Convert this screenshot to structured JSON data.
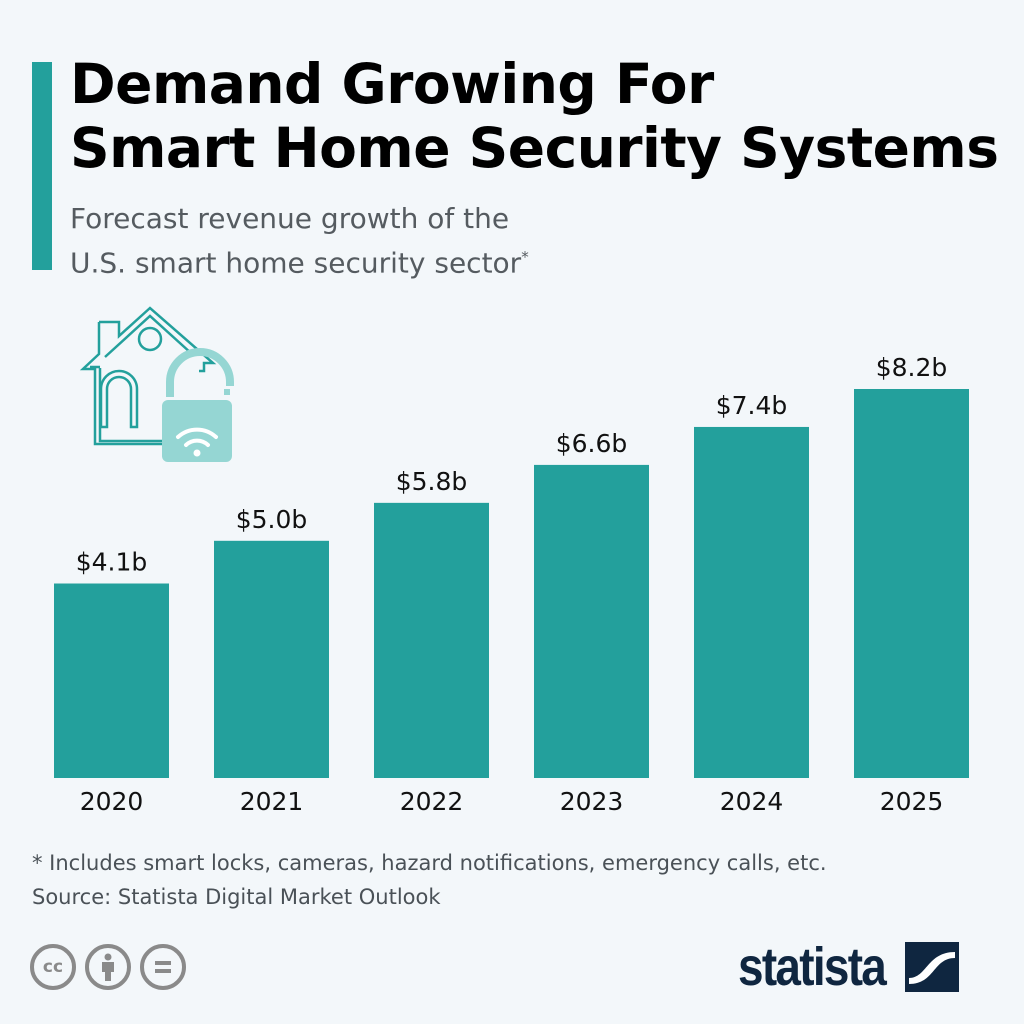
{
  "header": {
    "title_line1": "Demand Growing For",
    "title_line2": "Smart Home Security Systems",
    "subtitle_line1": "Forecast revenue growth of the",
    "subtitle_line2": "U.S. smart home security sector",
    "subtitle_mark": "*"
  },
  "colors": {
    "accent": "#23a09c",
    "bar": "#23a09c",
    "icon": "#23a09c",
    "lock": "#95d6d3",
    "logo": "#0f2640"
  },
  "chart_data": {
    "type": "bar",
    "title": "Demand Growing For Smart Home Security Systems",
    "subtitle": "Forecast revenue growth of the U.S. smart home security sector*",
    "categories": [
      "2020",
      "2021",
      "2022",
      "2023",
      "2024",
      "2025"
    ],
    "values": [
      4.1,
      5.0,
      5.8,
      6.6,
      7.4,
      8.2
    ],
    "value_labels": [
      "$4.1b",
      "$5.0b",
      "$5.8b",
      "$6.6b",
      "$7.4b",
      "$8.2b"
    ],
    "unit": "billion USD",
    "xlabel": "",
    "ylabel": "",
    "ylim": [
      0,
      8.2
    ],
    "grid": false,
    "legend": "none"
  },
  "footer": {
    "note": "* Includes smart locks, cameras, hazard notifications, emergency calls, etc.",
    "source": "Source: Statista Digital Market Outlook",
    "license_icons": [
      "cc-icon",
      "by-icon",
      "nd-icon"
    ],
    "cc_text": "cc",
    "logo_text": "statista"
  },
  "illustration": "house-lock-wifi-icon"
}
